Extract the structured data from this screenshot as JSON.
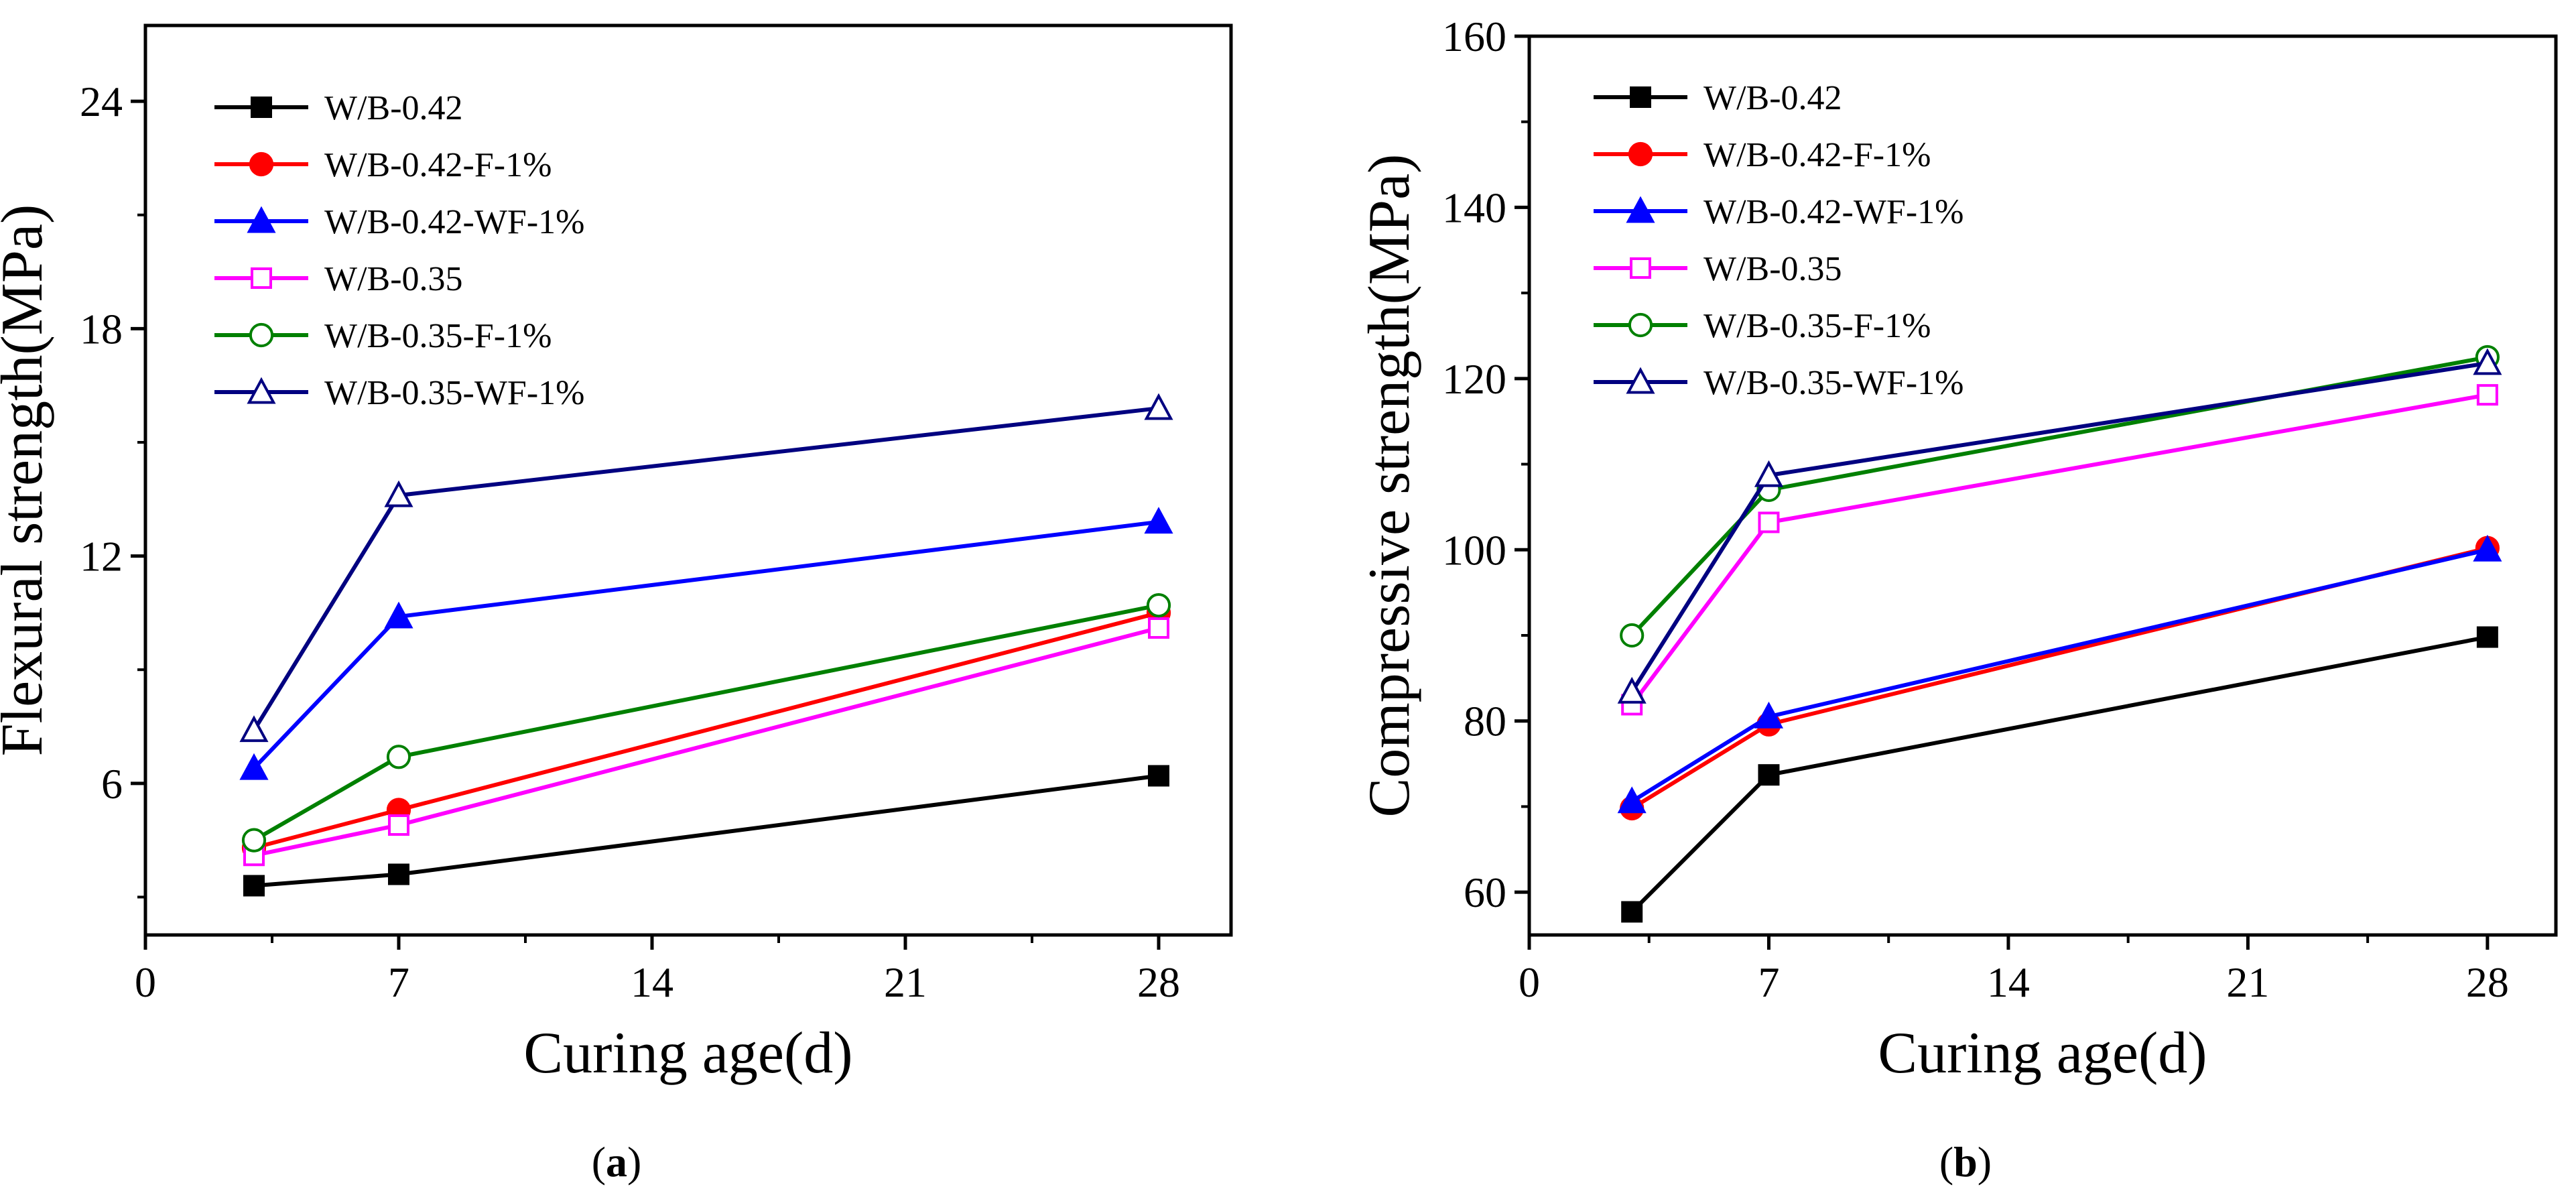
{
  "panels": [
    {
      "label": "a"
    },
    {
      "label": "b"
    }
  ],
  "chart_data": [
    {
      "type": "line",
      "xlabel": "Curing age(d)",
      "ylabel": "Flexural strength(MPa)",
      "xlim": [
        0,
        30
      ],
      "ylim": [
        2,
        26
      ],
      "xticks": [
        0,
        7,
        14,
        21,
        28
      ],
      "yticks": [
        6,
        12,
        18,
        24
      ],
      "legend_position": "top-left",
      "x": [
        3,
        7,
        28
      ],
      "series": [
        {
          "name": "W/B-0.42",
          "color": "#000000",
          "marker": "square-filled",
          "values": [
            3.3,
            3.6,
            6.2
          ]
        },
        {
          "name": "W/B-0.42-F-1%",
          "color": "#ff0000",
          "marker": "circle-filled",
          "values": [
            4.3,
            5.3,
            10.5
          ]
        },
        {
          "name": "W/B-0.42-WF-1%",
          "color": "#0000ff",
          "marker": "triangle-filled",
          "values": [
            6.4,
            10.4,
            12.9
          ]
        },
        {
          "name": "W/B-0.35",
          "color": "#ff00ff",
          "marker": "square-open",
          "values": [
            4.1,
            4.9,
            10.1
          ]
        },
        {
          "name": "W/B-0.35-F-1%",
          "color": "#008000",
          "marker": "circle-open",
          "values": [
            4.5,
            6.7,
            10.7
          ]
        },
        {
          "name": "W/B-0.35-WF-1%",
          "color": "#000080",
          "marker": "triangle-open",
          "values": [
            7.4,
            13.6,
            15.9
          ]
        }
      ]
    },
    {
      "type": "line",
      "xlabel": "Curing age(d)",
      "ylabel": "Compressive strength(MPa)",
      "xlim": [
        0,
        30
      ],
      "ylim": [
        55,
        160
      ],
      "xticks": [
        0,
        7,
        14,
        21,
        28
      ],
      "yticks": [
        60,
        80,
        100,
        120,
        140,
        160
      ],
      "legend_position": "top-left",
      "x": [
        3,
        7,
        28
      ],
      "series": [
        {
          "name": "W/B-0.42",
          "color": "#000000",
          "marker": "square-filled",
          "values": [
            57.7,
            73.7,
            89.8
          ]
        },
        {
          "name": "W/B-0.42-F-1%",
          "color": "#ff0000",
          "marker": "circle-filled",
          "values": [
            69.8,
            79.6,
            100.2
          ]
        },
        {
          "name": "W/B-0.42-WF-1%",
          "color": "#0000ff",
          "marker": "triangle-filled",
          "values": [
            70.6,
            80.5,
            100.0
          ]
        },
        {
          "name": "W/B-0.35",
          "color": "#ff00ff",
          "marker": "square-open",
          "values": [
            81.9,
            103.2,
            118.1
          ]
        },
        {
          "name": "W/B-0.35-F-1%",
          "color": "#008000",
          "marker": "circle-open",
          "values": [
            90.0,
            107.0,
            122.5
          ]
        },
        {
          "name": "W/B-0.35-WF-1%",
          "color": "#000080",
          "marker": "triangle-open",
          "values": [
            83.4,
            108.7,
            121.8
          ]
        }
      ]
    }
  ]
}
